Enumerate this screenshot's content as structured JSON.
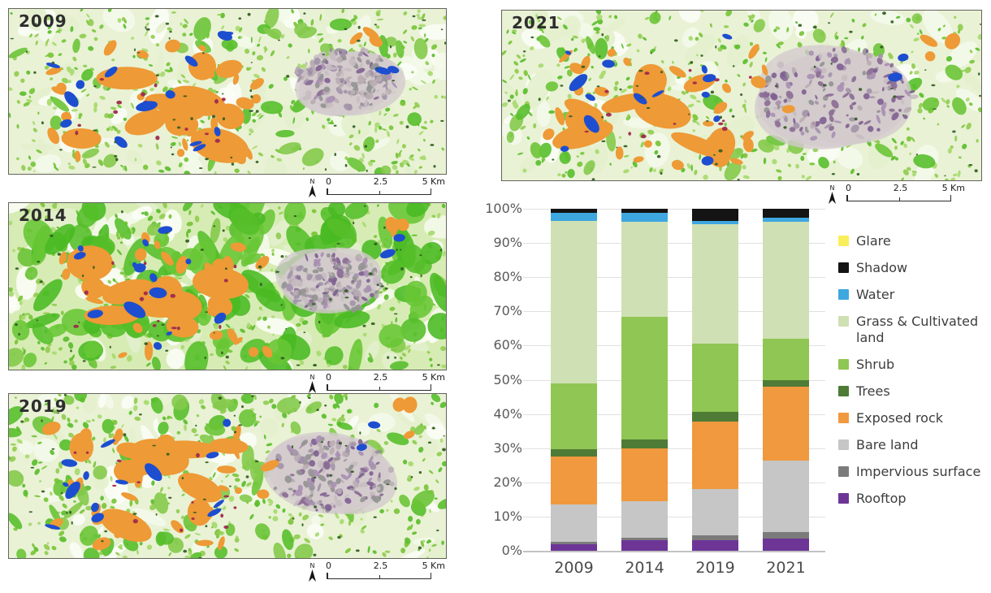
{
  "maps": [
    {
      "year": "2009"
    },
    {
      "year": "2014"
    },
    {
      "year": "2019"
    },
    {
      "year": "2021"
    }
  ],
  "scalebar": {
    "north_label": "N",
    "tick_start": "0",
    "tick_mid": "2.5",
    "tick_end": "5 Km"
  },
  "chart_data": {
    "type": "bar",
    "subtype": "stacked-percentage",
    "title": "",
    "xlabel": "",
    "ylabel": "",
    "categories": [
      "2009",
      "2014",
      "2019",
      "2021"
    ],
    "series": [
      {
        "name": "Rooftop",
        "color": "#6d3596",
        "values": [
          2.0,
          3.1,
          3.1,
          3.6
        ]
      },
      {
        "name": "Impervious surface",
        "color": "#7b7b7b",
        "values": [
          0.6,
          0.7,
          1.4,
          1.9
        ]
      },
      {
        "name": "Bare land",
        "color": "#c6c6c6",
        "values": [
          10.9,
          10.7,
          13.5,
          20.9
        ]
      },
      {
        "name": "Exposed rock",
        "color": "#f0993f",
        "values": [
          14.0,
          15.4,
          19.8,
          21.6
        ]
      },
      {
        "name": "Trees",
        "color": "#4e7b35",
        "values": [
          2.1,
          2.6,
          2.8,
          1.9
        ]
      },
      {
        "name": "Shrub",
        "color": "#90c653",
        "values": [
          19.3,
          35.9,
          20.0,
          12.1
        ]
      },
      {
        "name": "Grass & Cultivated land",
        "color": "#cfe0b4",
        "values": [
          47.5,
          27.8,
          34.9,
          34.2
        ]
      },
      {
        "name": "Water",
        "color": "#3ea7e0",
        "values": [
          2.4,
          2.6,
          1.0,
          1.2
        ]
      },
      {
        "name": "Shadow",
        "color": "#141414",
        "values": [
          1.2,
          1.2,
          3.5,
          2.6
        ]
      },
      {
        "name": "Glare",
        "color": "#f8ef5a",
        "values": [
          0,
          0,
          0,
          0
        ]
      }
    ],
    "legend_order_top_to_bottom": [
      "Glare",
      "Shadow",
      "Water",
      "Grass & Cultivated land",
      "Shrub",
      "Trees",
      "Exposed rock",
      "Bare land",
      "Impervious surface",
      "Rooftop"
    ],
    "ylim": [
      0,
      100
    ],
    "yticks": [
      "0%",
      "10%",
      "20%",
      "30%",
      "40%",
      "50%",
      "60%",
      "70%",
      "80%",
      "90%",
      "100%"
    ],
    "grid": true,
    "legend_position": "right"
  },
  "map_palette": {
    "base": "#e9f2d5",
    "base_2014": "#d7ecb4",
    "pale_patches": [
      "#f4f9ea",
      "#e3f0cd",
      "#fbfdf6"
    ],
    "green_speckle": [
      "#7cc63d",
      "#94ce54",
      "#5fbf32",
      "#aada72"
    ],
    "green_big": [
      "#6cc437",
      "#84ca4b",
      "#58bf2c"
    ],
    "bright_green_2014": [
      "#54be29",
      "#68c634",
      "#49ba22"
    ],
    "exposed_rock": "#ee9a36",
    "maroon_speckle": "#9e2a4d",
    "water": "#1d4ed0",
    "urban_base": "#d3cacd",
    "urban_speckle": [
      "#b9adb3",
      "#a294a8",
      "#929292",
      "#c7bcc1"
    ],
    "urban_purple": [
      "#a98fb3",
      "#8a6b94",
      "#7e5f91"
    ],
    "dark_green": "#2e5a1e"
  }
}
